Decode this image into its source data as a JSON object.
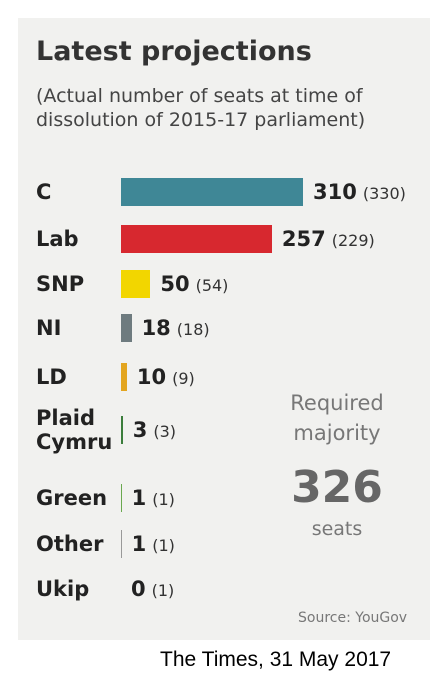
{
  "chart_data": {
    "type": "bar",
    "orientation": "horizontal",
    "title": "Latest projections",
    "subtitle": "(Actual number of seats at time of dissolution of 2015-17 parliament)",
    "categories": [
      "C",
      "Lab",
      "SNP",
      "NI",
      "LD",
      "Plaid Cymru",
      "Green",
      "Other",
      "Ukip"
    ],
    "values": [
      310,
      257,
      50,
      18,
      10,
      3,
      1,
      1,
      0
    ],
    "previous_values": [
      330,
      229,
      54,
      18,
      9,
      3,
      1,
      1,
      1
    ],
    "previous_value_labels": [
      "(330)",
      "(229)",
      "(54)",
      "(18)",
      "(9)",
      "(3)",
      "(1)",
      "(1)",
      "(1)"
    ],
    "colors": [
      "#3f8796",
      "#d7282f",
      "#f2d600",
      "#6e7b7f",
      "#e3a51f",
      "#3b7d3b",
      "#6aa84f",
      "#999999",
      "#7d3c98"
    ],
    "annotation": {
      "label": "Required majority",
      "value": 326,
      "unit": "seats"
    },
    "source": "Source: YouGov",
    "caption": "The Times, 31 May 2017"
  }
}
